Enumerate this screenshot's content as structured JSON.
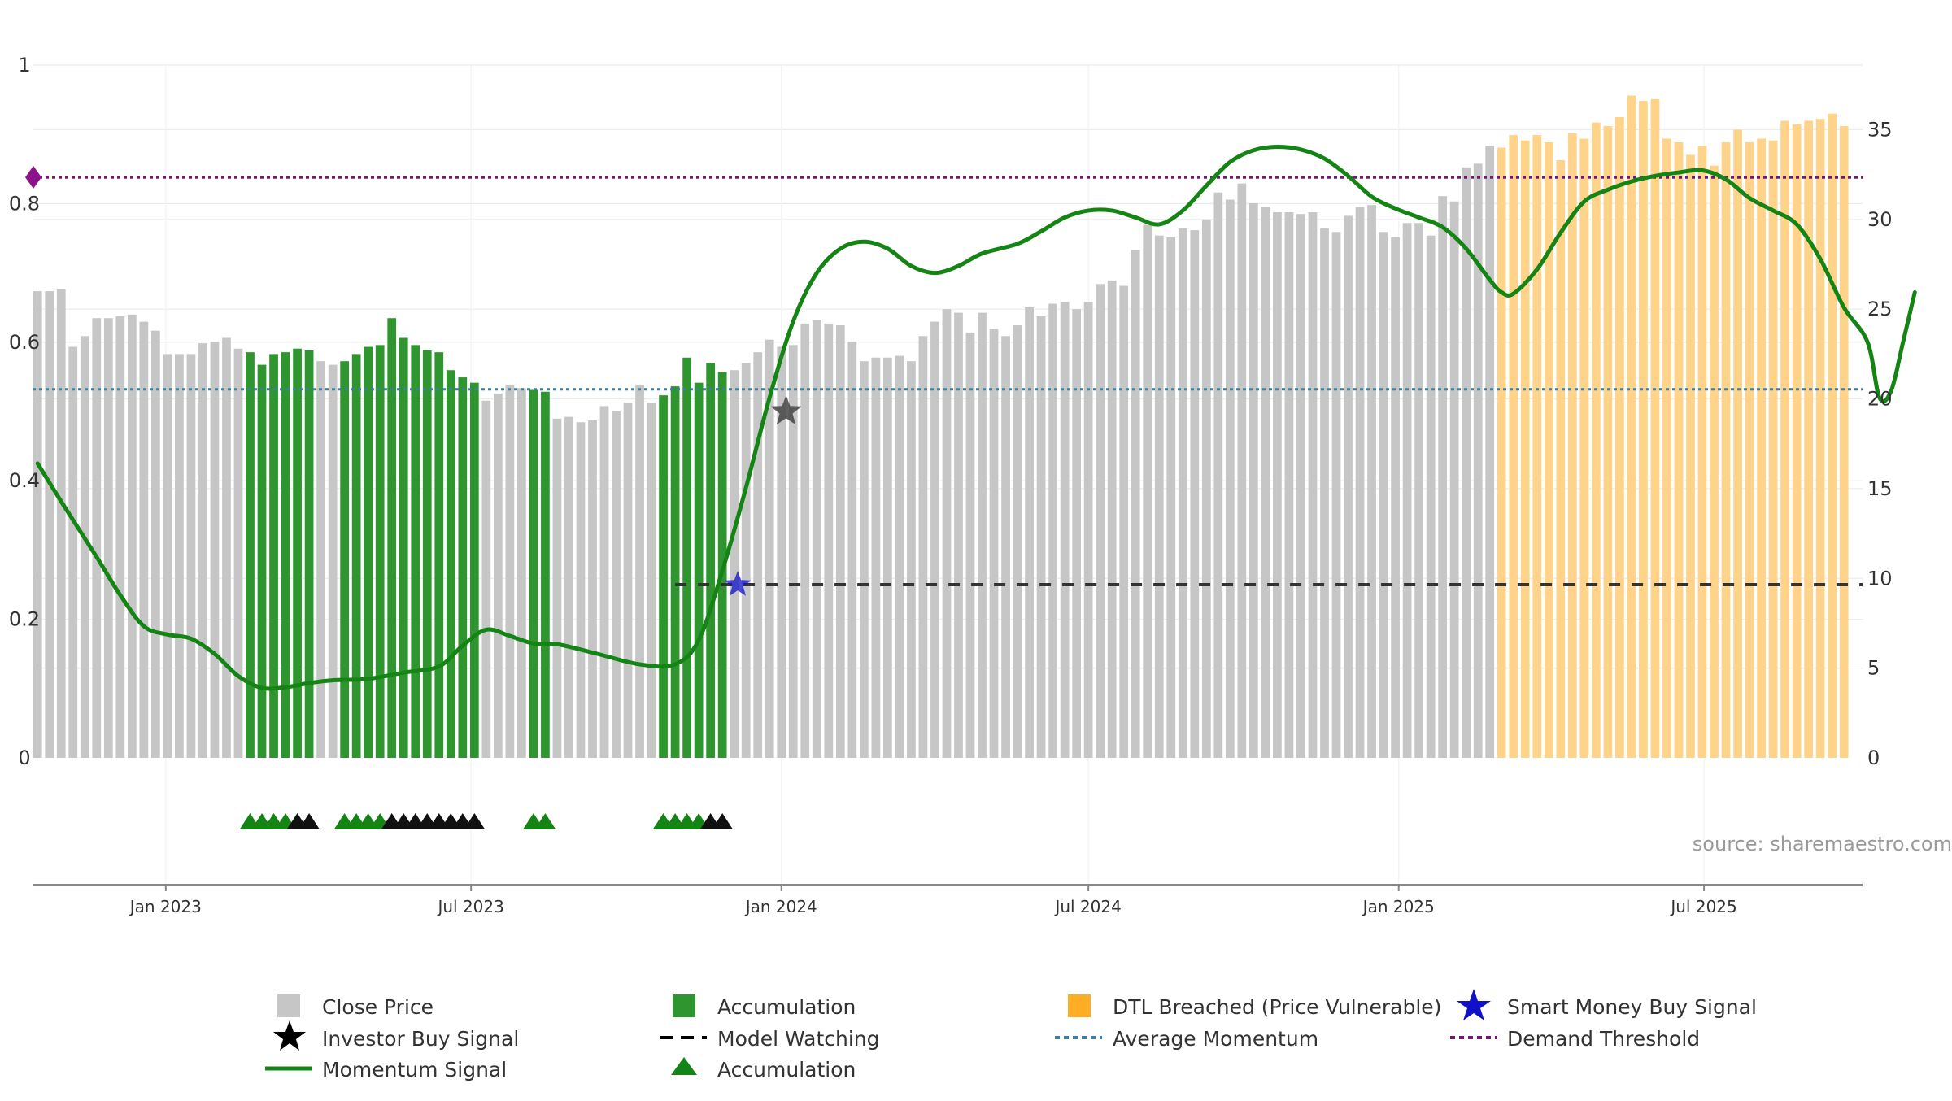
{
  "colors": {
    "close_price": "#c6c6c6",
    "accumulation": "#2f962f",
    "dtl_breached": "#ffd48a",
    "momentum": "#148414",
    "average_momentum": "#3d7fa0",
    "demand_threshold": "#6e1a6e",
    "model_watching": "#333333",
    "smart_money": "#1010c8",
    "investor_buy": "#444444",
    "triangle_green": "#148414",
    "triangle_black": "#111111",
    "grid": "#ececec",
    "axis_text": "#333333",
    "source_text": "#9a9a9a"
  },
  "source_label": "source: sharemaestro.com",
  "legend": {
    "close_price": "Close Price",
    "investor_buy": "Investor Buy Signal",
    "momentum": "Momentum Signal",
    "accumulation_bar": "Accumulation",
    "model_watching": "Model Watching",
    "accumulation_tri": "Accumulation",
    "dtl": "DTL Breached (Price Vulnerable)",
    "average_momentum": "Average Momentum",
    "smart_money": "Smart Money Buy Signal",
    "demand_threshold": "Demand Threshold"
  },
  "chart_data": {
    "type": "bar",
    "title": "",
    "x_start": "2022-10-17",
    "x_step_days": 7,
    "x_range": [
      "2022-10-14",
      "2025-10-03"
    ],
    "x_ticks": [
      {
        "date": "2023-01-01",
        "label": "Jan 2023"
      },
      {
        "date": "2023-07-01",
        "label": "Jul 2023"
      },
      {
        "date": "2024-01-01",
        "label": "Jan 2024"
      },
      {
        "date": "2024-07-01",
        "label": "Jul 2024"
      },
      {
        "date": "2025-01-01",
        "label": "Jan 2025"
      },
      {
        "date": "2025-07-01",
        "label": "Jul 2025"
      }
    ],
    "y_left": {
      "range": [
        0,
        1
      ],
      "ticks": [
        0,
        0.2,
        0.4,
        0.6,
        0.8,
        1
      ],
      "tick_labels": [
        "0",
        "0.2",
        "0.4",
        "0.6",
        "0.8",
        "1"
      ]
    },
    "y_right": {
      "range": [
        0,
        38.6
      ],
      "ticks": [
        0,
        5,
        10,
        15,
        20,
        25,
        30,
        35
      ],
      "tick_labels": [
        "0",
        "5",
        "10",
        "15",
        "20",
        "25",
        "30",
        "35"
      ]
    },
    "bar_series": [
      "Close Price",
      "Accumulation",
      "DTL Breached (Price Vulnerable)"
    ],
    "close_prices": [
      26.0,
      26.0,
      26.1,
      22.9,
      23.5,
      24.5,
      24.5,
      24.6,
      24.7,
      24.3,
      23.8,
      22.5,
      22.5,
      22.5,
      23.1,
      23.2,
      23.4,
      22.8,
      22.6,
      21.9,
      22.5,
      22.6,
      22.8,
      22.7,
      22.1,
      21.9,
      22.1,
      22.5,
      22.9,
      23.0,
      24.5,
      23.4,
      23.0,
      22.7,
      22.6,
      21.6,
      21.2,
      20.9,
      19.9,
      20.3,
      20.8,
      20.6,
      20.5,
      20.4,
      18.9,
      19.0,
      18.7,
      18.8,
      19.6,
      19.3,
      19.8,
      20.8,
      19.8,
      20.2,
      20.7,
      22.3,
      20.9,
      22.0,
      21.5,
      21.6,
      22.0,
      22.6,
      23.3,
      22.9,
      23.0,
      24.2,
      24.4,
      24.2,
      24.1,
      23.2,
      22.1,
      22.3,
      22.3,
      22.4,
      22.1,
      23.5,
      24.3,
      25.0,
      24.8,
      23.7,
      24.8,
      23.9,
      23.5,
      24.1,
      25.1,
      24.6,
      25.3,
      25.4,
      25.0,
      25.4,
      26.4,
      26.6,
      26.3,
      28.3,
      29.7,
      29.1,
      29.0,
      29.5,
      29.4,
      30.0,
      31.5,
      31.1,
      32.0,
      30.9,
      30.7,
      30.4,
      30.4,
      30.3,
      30.4,
      29.5,
      29.3,
      30.2,
      30.7,
      30.8,
      29.3,
      29.0,
      29.8,
      29.8,
      29.1,
      31.3,
      31.0,
      32.9,
      33.1,
      34.1,
      34.0,
      34.7,
      34.4,
      34.7,
      34.3,
      33.3,
      34.8,
      34.5,
      35.4,
      35.2,
      35.7,
      36.9,
      36.6,
      36.7,
      34.5,
      34.3,
      33.6,
      34.1,
      33.0,
      34.3,
      35.0,
      34.3,
      34.5,
      34.4,
      35.5,
      35.3,
      35.5,
      35.6,
      35.9,
      35.2
    ],
    "accumulation_ranges": [
      [
        18,
        23
      ],
      [
        26,
        37
      ],
      [
        42,
        43
      ],
      [
        53,
        58
      ]
    ],
    "dtl_start_index": 124,
    "momentum": {
      "name": "Momentum Signal",
      "axis": "left",
      "points": [
        [
          0,
          0.425
        ],
        [
          2,
          0.37
        ],
        [
          5,
          0.29
        ],
        [
          7,
          0.235
        ],
        [
          9,
          0.19
        ],
        [
          11,
          0.178
        ],
        [
          13,
          0.172
        ],
        [
          15,
          0.15
        ],
        [
          17,
          0.118
        ],
        [
          19,
          0.101
        ],
        [
          21,
          0.102
        ],
        [
          23,
          0.108
        ],
        [
          25,
          0.112
        ],
        [
          28,
          0.114
        ],
        [
          31,
          0.123
        ],
        [
          34,
          0.132
        ],
        [
          36,
          0.162
        ],
        [
          38,
          0.185
        ],
        [
          40,
          0.176
        ],
        [
          42,
          0.165
        ],
        [
          44,
          0.164
        ],
        [
          47,
          0.152
        ],
        [
          51,
          0.135
        ],
        [
          54,
          0.135
        ],
        [
          56,
          0.17
        ],
        [
          58,
          0.27
        ],
        [
          60,
          0.39
        ],
        [
          62,
          0.52
        ],
        [
          64,
          0.63
        ],
        [
          66,
          0.7
        ],
        [
          68,
          0.735
        ],
        [
          70,
          0.745
        ],
        [
          72,
          0.735
        ],
        [
          74,
          0.71
        ],
        [
          76,
          0.7
        ],
        [
          78,
          0.71
        ],
        [
          80,
          0.728
        ],
        [
          83,
          0.742
        ],
        [
          85,
          0.76
        ],
        [
          87,
          0.78
        ],
        [
          89,
          0.79
        ],
        [
          91,
          0.79
        ],
        [
          93,
          0.78
        ],
        [
          95,
          0.77
        ],
        [
          97,
          0.79
        ],
        [
          99,
          0.826
        ],
        [
          101,
          0.86
        ],
        [
          103,
          0.877
        ],
        [
          105,
          0.882
        ],
        [
          107,
          0.878
        ],
        [
          109,
          0.865
        ],
        [
          111,
          0.84
        ],
        [
          113,
          0.81
        ],
        [
          115,
          0.793
        ],
        [
          117,
          0.78
        ],
        [
          119,
          0.766
        ],
        [
          121,
          0.735
        ],
        [
          123,
          0.69
        ],
        [
          124,
          0.672
        ],
        [
          125,
          0.67
        ],
        [
          127,
          0.705
        ],
        [
          129,
          0.758
        ],
        [
          131,
          0.803
        ],
        [
          133,
          0.82
        ],
        [
          135,
          0.832
        ],
        [
          137,
          0.84
        ],
        [
          139,
          0.845
        ],
        [
          141,
          0.848
        ],
        [
          143,
          0.835
        ],
        [
          145,
          0.808
        ],
        [
          147,
          0.79
        ],
        [
          149,
          0.77
        ],
        [
          151,
          0.72
        ],
        [
          153,
          0.65
        ],
        [
          155,
          0.6
        ],
        [
          156,
          0.52
        ],
        [
          157,
          0.53
        ],
        [
          158,
          0.6
        ],
        [
          159,
          0.672
        ]
      ]
    },
    "average_momentum": {
      "name": "Average Momentum",
      "axis": "left",
      "value": 0.532
    },
    "demand_threshold": {
      "name": "Demand Threshold",
      "axis": "left",
      "value": 0.838
    },
    "model_watching": {
      "name": "Model Watching",
      "axis": "left",
      "value": 0.25,
      "start_index": 54
    },
    "smart_money_buy": [
      {
        "index": 59.3,
        "value": 0.25
      }
    ],
    "investor_buy": [
      {
        "index": 63.4,
        "value": 0.5
      }
    ],
    "accumulation_triangles": [
      {
        "index": 18,
        "color": "green"
      },
      {
        "index": 19,
        "color": "green"
      },
      {
        "index": 20,
        "color": "green"
      },
      {
        "index": 21,
        "color": "green"
      },
      {
        "index": 22,
        "color": "black"
      },
      {
        "index": 23,
        "color": "black"
      },
      {
        "index": 26,
        "color": "green"
      },
      {
        "index": 27,
        "color": "green"
      },
      {
        "index": 28,
        "color": "green"
      },
      {
        "index": 29,
        "color": "green"
      },
      {
        "index": 30,
        "color": "black"
      },
      {
        "index": 31,
        "color": "black"
      },
      {
        "index": 32,
        "color": "black"
      },
      {
        "index": 33,
        "color": "black"
      },
      {
        "index": 34,
        "color": "black"
      },
      {
        "index": 35,
        "color": "black"
      },
      {
        "index": 36,
        "color": "black"
      },
      {
        "index": 37,
        "color": "black"
      },
      {
        "index": 42,
        "color": "green"
      },
      {
        "index": 43,
        "color": "green"
      },
      {
        "index": 53,
        "color": "green"
      },
      {
        "index": 54,
        "color": "green"
      },
      {
        "index": 55,
        "color": "green"
      },
      {
        "index": 56,
        "color": "green"
      },
      {
        "index": 57,
        "color": "black"
      },
      {
        "index": 58,
        "color": "black"
      }
    ]
  }
}
